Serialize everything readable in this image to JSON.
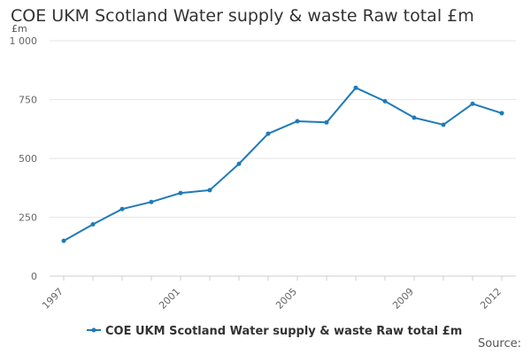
{
  "title": "COE UKM Scotland Water supply & waste Raw total £m",
  "unit_label": "£m",
  "source_label": "Source:",
  "colors": {
    "series": "#1f7ab8",
    "grid": "#e6e6e6",
    "axis": "#cccccc"
  },
  "chart_data": {
    "type": "line",
    "title": "COE UKM Scotland Water supply & waste Raw total £m",
    "ylabel": "£m",
    "xlabel": "",
    "ylim": [
      0,
      1000
    ],
    "yticks": [
      0,
      250,
      500,
      750,
      1000
    ],
    "ytick_labels": [
      "0",
      "250",
      "500",
      "750",
      "1 000"
    ],
    "xticks": [
      1997,
      2001,
      2005,
      2009,
      2012
    ],
    "xtick_labels": [
      "1997",
      "2001",
      "2005",
      "2009",
      "2012"
    ],
    "grid": true,
    "legend_position": "bottom",
    "x": [
      1997,
      1998,
      1999,
      2000,
      2001,
      2002,
      2003,
      2004,
      2005,
      2006,
      2007,
      2008,
      2009,
      2010,
      2011,
      2012
    ],
    "series": [
      {
        "name": "COE UKM Scotland Water supply & waste Raw total £m",
        "values": [
          150,
          220,
          285,
          315,
          353,
          365,
          477,
          605,
          658,
          653,
          800,
          743,
          673,
          643,
          732,
          692
        ]
      }
    ]
  }
}
